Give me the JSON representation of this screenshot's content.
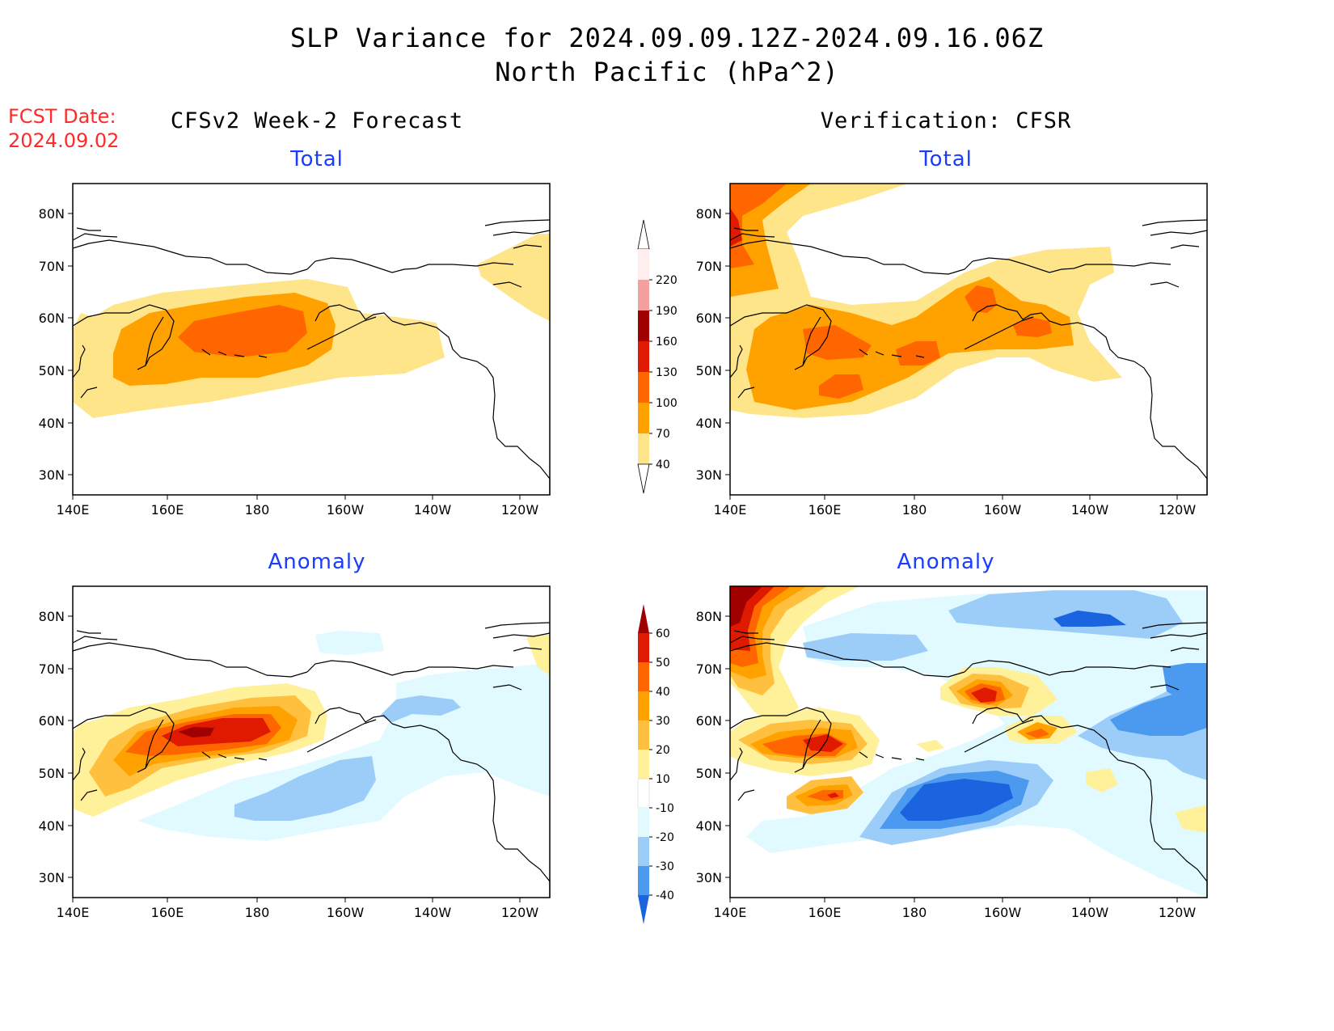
{
  "title": {
    "line1": "SLP Variance for 2024.09.09.12Z-2024.09.16.06Z",
    "line2": "North Pacific (hPa^2)"
  },
  "fcst_date": {
    "label": "FCST Date:",
    "value": "2024.09.02"
  },
  "columns": {
    "left": "CFSv2 Week-2 Forecast",
    "right": "Verification: CFSR"
  },
  "panels": {
    "forecast_total": {
      "subtitle": "Total"
    },
    "verification_total": {
      "subtitle": "Total"
    },
    "forecast_anomaly": {
      "subtitle": "Anomaly"
    },
    "verification_anomaly": {
      "subtitle": "Anomaly"
    }
  },
  "map": {
    "lat_ticks": [
      "80N",
      "70N",
      "60N",
      "50N",
      "40N",
      "30N"
    ],
    "lon_ticks": [
      "140E",
      "160E",
      "180",
      "160W",
      "140W",
      "120W"
    ]
  },
  "total_colorbar": {
    "labels": [
      "220",
      "190",
      "160",
      "130",
      "100",
      "70",
      "40"
    ],
    "colors": [
      "#ffeeee",
      "#f4a0a0",
      "#a00000",
      "#e01a00",
      "#ff6600",
      "#ffa200",
      "#ffe58a"
    ]
  },
  "anomaly_colorbar": {
    "labels": [
      "60",
      "50",
      "40",
      "30",
      "20",
      "10",
      "-10",
      "-20",
      "-30",
      "-40"
    ],
    "colors": [
      "#a00000",
      "#e01a00",
      "#ff6600",
      "#ffa200",
      "#ffc040",
      "#fff09a",
      "#ffffff",
      "#e0faff",
      "#9ccdf8",
      "#4c9af0",
      "#1a64e0"
    ]
  }
}
